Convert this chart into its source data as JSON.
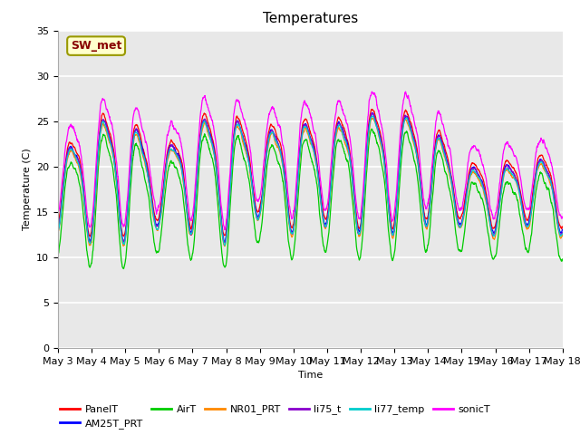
{
  "title": "Temperatures",
  "xlabel": "Time",
  "ylabel": "Temperature (C)",
  "ylim": [
    0,
    35
  ],
  "yticks": [
    0,
    5,
    10,
    15,
    20,
    25,
    30,
    35
  ],
  "n_days": 15,
  "annotation_text": "SW_met",
  "annotation_bg": "#ffffcc",
  "annotation_fg": "#880000",
  "annotation_border": "#999900",
  "series_names": [
    "PanelT",
    "AM25T_PRT",
    "AirT",
    "NR01_PRT",
    "li75_t",
    "li77_temp",
    "sonicT"
  ],
  "series_colors": [
    "#ff0000",
    "#0000ff",
    "#00cc00",
    "#ff8800",
    "#8800cc",
    "#00cccc",
    "#ff00ff"
  ],
  "background_color": "#e8e8e8",
  "grid_color": "#ffffff",
  "title_fontsize": 11,
  "axis_fontsize": 8,
  "tick_fontsize": 8,
  "legend_fontsize": 8,
  "figsize": [
    6.4,
    4.8
  ],
  "dpi": 100
}
